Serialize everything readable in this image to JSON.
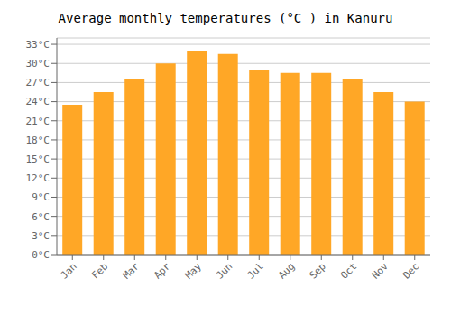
{
  "chart_data": {
    "type": "bar",
    "title": "Average monthly temperatures (°C ) in Kanuru",
    "categories": [
      "Jan",
      "Feb",
      "Mar",
      "Apr",
      "May",
      "Jun",
      "Jul",
      "Aug",
      "Sep",
      "Oct",
      "Nov",
      "Dec"
    ],
    "values": [
      23.5,
      25.5,
      27.5,
      30.0,
      32.0,
      31.5,
      29.0,
      28.5,
      28.5,
      27.5,
      25.5,
      24.0
    ],
    "color": "#FFA726",
    "ylim": [
      0,
      34
    ],
    "yticks": [
      {
        "value": 0,
        "label": "0°C"
      },
      {
        "value": 3,
        "label": "3°C"
      },
      {
        "value": 6,
        "label": "6°C"
      },
      {
        "value": 9,
        "label": "9°C"
      },
      {
        "value": 12,
        "label": "12°C"
      },
      {
        "value": 15,
        "label": "15°C"
      },
      {
        "value": 18,
        "label": "18°C"
      },
      {
        "value": 21,
        "label": "21°C"
      },
      {
        "value": 24,
        "label": "24°C"
      },
      {
        "value": 27,
        "label": "27°C"
      },
      {
        "value": 30,
        "label": "30°C"
      },
      {
        "value": 33,
        "label": "33°C"
      }
    ],
    "grid": true
  }
}
